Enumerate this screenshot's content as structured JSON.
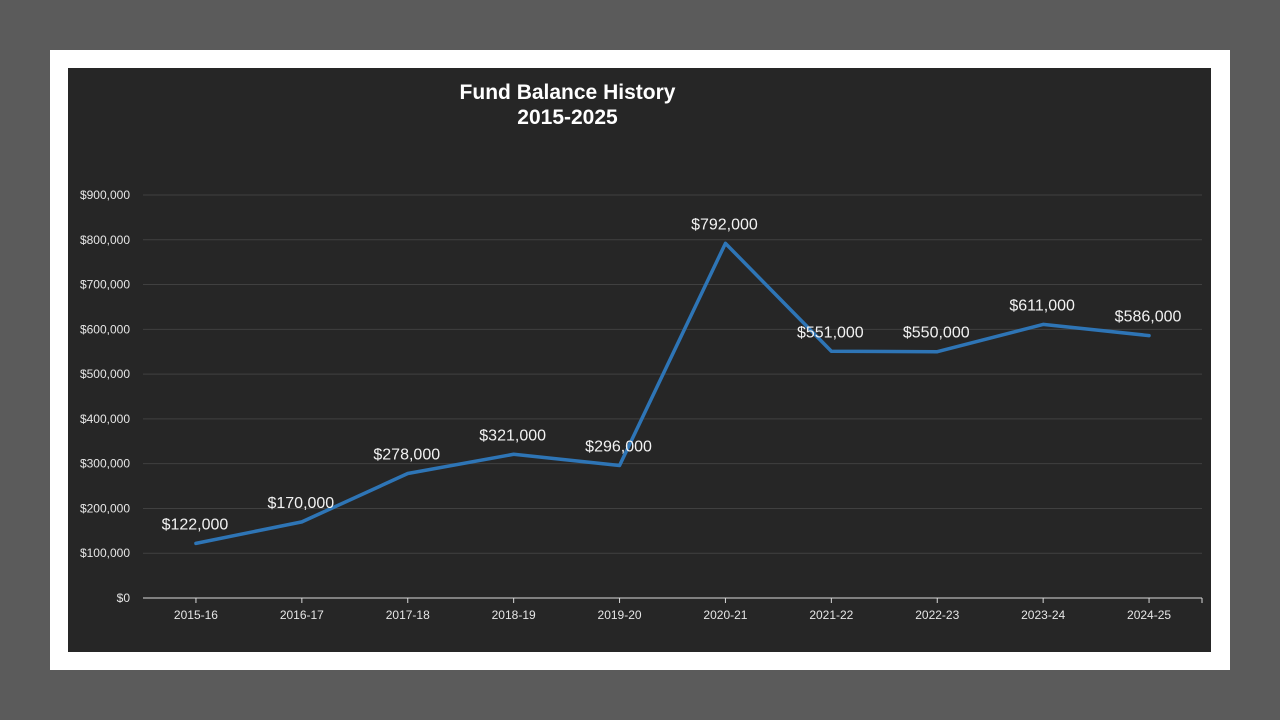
{
  "chart_data": {
    "type": "line",
    "title": "Fund Balance History",
    "subtitle": "2015-2025",
    "xlabel": "",
    "ylabel": "",
    "categories": [
      "2015-16",
      "2016-17",
      "2017-18",
      "2018-19",
      "2019-20",
      "2020-21",
      "2021-22",
      "2022-23",
      "2023-24",
      "2024-25"
    ],
    "values": [
      122000,
      170000,
      278000,
      321000,
      296000,
      792000,
      551000,
      550000,
      611000,
      586000
    ],
    "data_labels": [
      "$122,000",
      "$170,000",
      "$278,000",
      "$321,000",
      "$296,000",
      "$792,000",
      "$551,000",
      "$550,000",
      "$611,000",
      "$586,000"
    ],
    "ylim": [
      0,
      900000
    ],
    "yticks": [
      0,
      100000,
      200000,
      300000,
      400000,
      500000,
      600000,
      700000,
      800000,
      900000
    ],
    "ytick_labels": [
      "$0",
      "$100,000",
      "$200,000",
      "$300,000",
      "$400,000",
      "$500,000",
      "$600,000",
      "$700,000",
      "$800,000",
      "$900,000"
    ],
    "grid": true,
    "legend": "none",
    "line_color": "#2e75b6"
  }
}
